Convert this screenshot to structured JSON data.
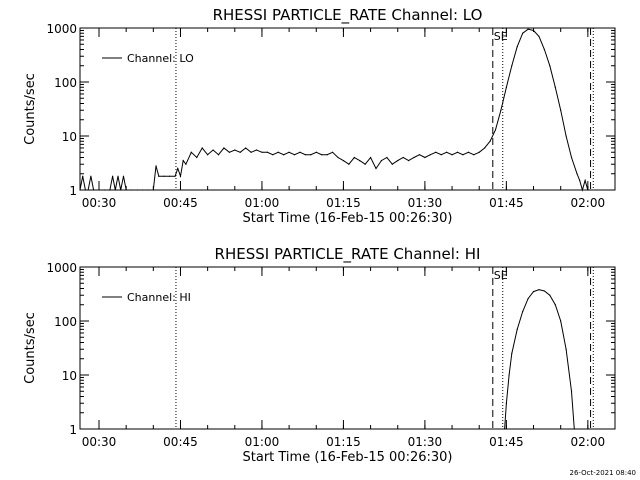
{
  "footer": {
    "timestamp": "26-Oct-2021 08:40"
  },
  "chart_data": [
    {
      "type": "line",
      "title": "RHESSI PARTICLE_RATE Channel: LO",
      "xlabel": "Start Time (16-Feb-15 00:26:30)",
      "ylabel": "Counts/sec",
      "yscale": "log",
      "ylim": [
        1,
        1000
      ],
      "xlim": [
        "00:26:30",
        "02:05:00"
      ],
      "xticks": [
        "00:30",
        "00:45",
        "01:00",
        "01:15",
        "01:30",
        "01:45",
        "02:00"
      ],
      "yticks": [
        "1",
        "10",
        "100",
        "1000"
      ],
      "grid": false,
      "legend": "upper-left",
      "series": [
        {
          "name": "Channel: LO",
          "x": [
            "00:26:30",
            "00:27:00",
            "00:27:30",
            "00:28:00",
            "00:28:30",
            "00:29:00",
            "00:30:00",
            "00:31:00",
            "00:32:00",
            "00:32:30",
            "00:33:00",
            "00:33:30",
            "00:34:00",
            "00:34:30",
            "00:35:00",
            "00:36:00",
            "00:37:00",
            "00:38:00",
            "00:39:00",
            "00:40:00",
            "00:40:30",
            "00:41:00",
            "00:42:00",
            "00:43:00",
            "00:44:00",
            "00:44:30",
            "00:45:00",
            "00:45:30",
            "00:46:00",
            "00:47:00",
            "00:48:00",
            "00:49:00",
            "00:50:00",
            "00:51:00",
            "00:52:00",
            "00:53:00",
            "00:54:00",
            "00:55:00",
            "00:56:00",
            "00:57:00",
            "00:58:00",
            "00:59:00",
            "01:00:00",
            "01:01:00",
            "01:02:00",
            "01:03:00",
            "01:04:00",
            "01:05:00",
            "01:06:00",
            "01:07:00",
            "01:08:00",
            "01:09:00",
            "01:10:00",
            "01:11:00",
            "01:12:00",
            "01:13:00",
            "01:14:00",
            "01:15:00",
            "01:16:00",
            "01:17:00",
            "01:18:00",
            "01:19:00",
            "01:20:00",
            "01:21:00",
            "01:22:00",
            "01:23:00",
            "01:24:00",
            "01:25:00",
            "01:26:00",
            "01:27:00",
            "01:28:00",
            "01:29:00",
            "01:30:00",
            "01:31:00",
            "01:32:00",
            "01:33:00",
            "01:34:00",
            "01:35:00",
            "01:36:00",
            "01:37:00",
            "01:38:00",
            "01:39:00",
            "01:40:00",
            "01:41:00",
            "01:42:00",
            "01:43:00",
            "01:44:00",
            "01:45:00",
            "01:46:00",
            "01:47:00",
            "01:48:00",
            "01:49:00",
            "01:50:00",
            "01:51:00",
            "01:52:00",
            "01:53:00",
            "01:54:00",
            "01:55:00",
            "01:56:00",
            "01:57:00",
            "01:58:00",
            "01:58:30",
            "01:59:00",
            "01:59:30",
            "02:00:00"
          ],
          "values": [
            1,
            1.8,
            1,
            1,
            1.8,
            1,
            1,
            1,
            1,
            1.8,
            1,
            1.8,
            1,
            1.8,
            1,
            1,
            1,
            1,
            1,
            1,
            2.8,
            1.8,
            1.8,
            1.8,
            1.8,
            2.5,
            1.8,
            3.5,
            3,
            5,
            4,
            6,
            4.5,
            5.5,
            4.5,
            6,
            5,
            5.5,
            5,
            6,
            5,
            5.5,
            5,
            5,
            4.5,
            5,
            4.5,
            5,
            4.5,
            5,
            4.5,
            4.5,
            5,
            4.5,
            4.5,
            5,
            4,
            3.5,
            3,
            4,
            3.5,
            3,
            4,
            2.5,
            3.5,
            4,
            3,
            3.5,
            4,
            3.5,
            4,
            4.5,
            4,
            4.5,
            5,
            4.5,
            5,
            4.5,
            5,
            4.5,
            5,
            4.5,
            5,
            6,
            8,
            13,
            30,
            80,
            200,
            450,
            800,
            950,
            900,
            700,
            400,
            200,
            80,
            30,
            10,
            4,
            2,
            1.5,
            1,
            1.5,
            1
          ]
        }
      ],
      "annotations": [
        {
          "label": "",
          "style": "dotted",
          "x": "00:44:10"
        },
        {
          "label": "",
          "style": "dashed",
          "x": "01:42:30"
        },
        {
          "label": "SE",
          "style": "dotted",
          "x": "01:44:20"
        },
        {
          "label": "",
          "style": "dashed",
          "x": "02:00:30"
        },
        {
          "label": "",
          "style": "dotted",
          "x": "02:01:00"
        }
      ]
    },
    {
      "type": "line",
      "title": "RHESSI PARTICLE_RATE Channel: HI",
      "xlabel": "Start Time (16-Feb-15 00:26:30)",
      "ylabel": "Counts/sec",
      "yscale": "log",
      "ylim": [
        1,
        1000
      ],
      "xlim": [
        "00:26:30",
        "02:05:00"
      ],
      "xticks": [
        "00:30",
        "00:45",
        "01:00",
        "01:15",
        "01:30",
        "01:45",
        "02:00"
      ],
      "yticks": [
        "1",
        "10",
        "100",
        "1000"
      ],
      "grid": false,
      "legend": "upper-left",
      "series": [
        {
          "name": "Channel: HI",
          "x": [
            "01:44:40",
            "01:45:00",
            "01:45:30",
            "01:46:00",
            "01:47:00",
            "01:48:00",
            "01:49:00",
            "01:50:00",
            "01:51:00",
            "01:52:00",
            "01:53:00",
            "01:54:00",
            "01:55:00",
            "01:56:00",
            "01:57:00",
            "01:57:30"
          ],
          "values": [
            1,
            3,
            10,
            25,
            70,
            150,
            260,
            350,
            380,
            360,
            300,
            200,
            100,
            30,
            5,
            1
          ]
        }
      ],
      "annotations": [
        {
          "label": "",
          "style": "dotted",
          "x": "00:44:10"
        },
        {
          "label": "",
          "style": "dashed",
          "x": "01:42:30"
        },
        {
          "label": "SE",
          "style": "dotted",
          "x": "01:44:20"
        },
        {
          "label": "",
          "style": "dashed",
          "x": "02:00:30"
        },
        {
          "label": "",
          "style": "dotted",
          "x": "02:01:00"
        }
      ]
    }
  ]
}
